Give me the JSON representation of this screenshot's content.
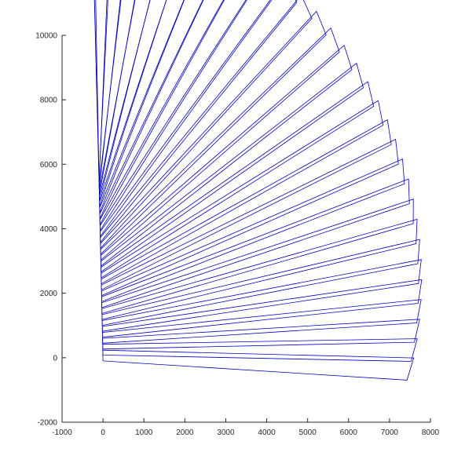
{
  "chart_data": {
    "type": "line",
    "title": "",
    "xlabel": "",
    "ylabel": "",
    "xlim": [
      -1000,
      8000
    ],
    "ylim": [
      -2000,
      10000
    ],
    "xticks": [
      -1000,
      0,
      1000,
      2000,
      3000,
      4000,
      5000,
      6000,
      7000,
      8000
    ],
    "yticks": [
      -2000,
      0,
      2000,
      4000,
      6000,
      8000,
      10000
    ],
    "xtick_labels": [
      "-1000",
      "0",
      "1000",
      "2000",
      "3000",
      "4000",
      "5000",
      "6000",
      "7000",
      "8000"
    ],
    "ytick_labels": [
      "-2000",
      "0",
      "2000",
      "4000",
      "6000",
      "8000",
      "10000"
    ],
    "grid": false,
    "legend": null,
    "line_color": "#0000cd",
    "axes_color": "#262626",
    "fan": {
      "count": 32,
      "inner_vertex": {
        "start": [
          0,
          -100
        ],
        "end": [
          -100,
          5600
        ]
      },
      "outer_vertex": {
        "start": [
          7450,
          -600
        ],
        "end": [
          7250,
          9350
        ]
      },
      "top_vertex_first": [
        -150,
        9350
      ],
      "inner_tip_first": [
        -150,
        5650
      ],
      "outer_right_edge_start": [
        7400,
        0
      ],
      "outer_right_edge_end": [
        7550,
        8950
      ]
    }
  }
}
